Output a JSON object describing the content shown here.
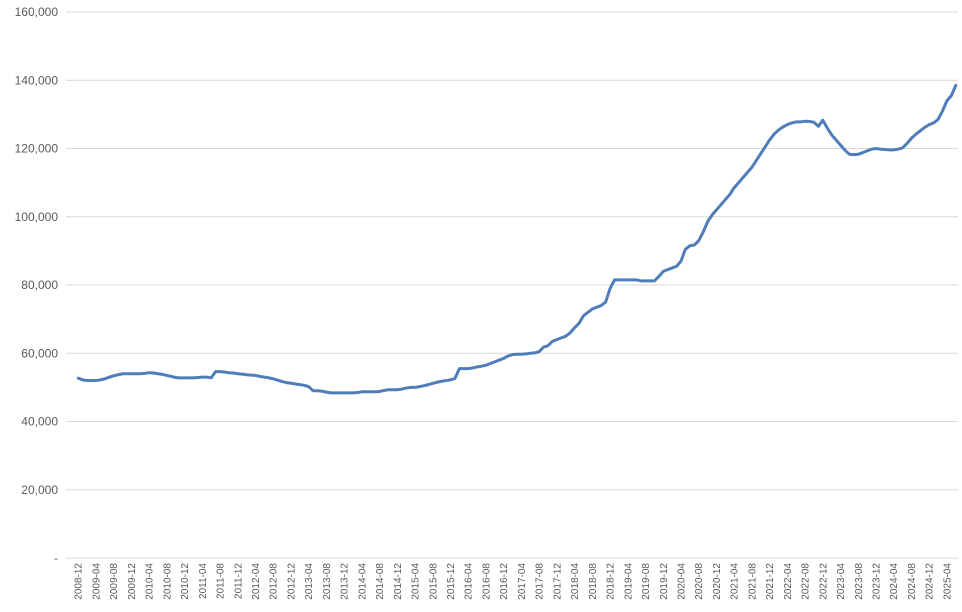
{
  "chart_data": {
    "type": "line",
    "categories": [
      "2008-12",
      null,
      null,
      null,
      "2009-04",
      null,
      null,
      null,
      "2009-08",
      null,
      null,
      null,
      "2009-12",
      null,
      null,
      null,
      "2010-04",
      null,
      null,
      null,
      "2010-08",
      null,
      null,
      null,
      "2010-12",
      null,
      null,
      null,
      "2011-04",
      null,
      null,
      null,
      "2011-08",
      null,
      null,
      null,
      "2011-12",
      null,
      null,
      null,
      "2012-04",
      null,
      null,
      null,
      "2012-08",
      null,
      null,
      null,
      "2012-12",
      null,
      null,
      null,
      "2013-04",
      null,
      null,
      null,
      "2013-08",
      null,
      null,
      null,
      "2013-12",
      null,
      null,
      null,
      "2014-04",
      null,
      null,
      null,
      "2014-08",
      null,
      null,
      null,
      "2014-12",
      null,
      null,
      null,
      "2015-04",
      null,
      null,
      null,
      "2015-08",
      null,
      null,
      null,
      "2015-12",
      null,
      null,
      null,
      "2016-04",
      null,
      null,
      null,
      "2016-08",
      null,
      null,
      null,
      "2016-12",
      null,
      null,
      null,
      "2017-04",
      null,
      null,
      null,
      "2017-08",
      null,
      null,
      null,
      "2017-12",
      null,
      null,
      null,
      "2018-04",
      null,
      null,
      null,
      "2018-08",
      null,
      null,
      null,
      "2018-12",
      null,
      null,
      null,
      "2019-04",
      null,
      null,
      null,
      "2019-08",
      null,
      null,
      null,
      "2019-12",
      null,
      null,
      null,
      "2020-04",
      null,
      null,
      null,
      "2020-08",
      null,
      null,
      null,
      "2020-12",
      null,
      null,
      null,
      "2021-04",
      null,
      null,
      null,
      "2021-08",
      null,
      null,
      null,
      "2021-12",
      null,
      null,
      null,
      "2022-04",
      null,
      null,
      null,
      "2022-08",
      null,
      null,
      null,
      "2022-12",
      null,
      null,
      null,
      "2023-04",
      null,
      null,
      null,
      "2023-08",
      null,
      null,
      null,
      "2023-12",
      null,
      null,
      null,
      "2024-04",
      null,
      null,
      null,
      "2024-08",
      null,
      null,
      null,
      "2024-12",
      null,
      null,
      null,
      "2025-04",
      null,
      null
    ],
    "series": [
      {
        "color": "#4f7dba",
        "values": [
          52700,
          52200,
          52000,
          52000,
          52000,
          52200,
          52500,
          53000,
          53400,
          53700,
          54000,
          54000,
          54000,
          54000,
          54000,
          54100,
          54300,
          54200,
          54000,
          53800,
          53500,
          53200,
          52900,
          52800,
          52800,
          52800,
          52800,
          52900,
          53000,
          53000,
          52800,
          54600,
          54600,
          54500,
          54300,
          54200,
          54000,
          53900,
          53700,
          53600,
          53500,
          53200,
          53000,
          52800,
          52500,
          52100,
          51700,
          51400,
          51200,
          51000,
          50800,
          50600,
          50200,
          49000,
          49000,
          48900,
          48600,
          48400,
          48400,
          48400,
          48400,
          48400,
          48400,
          48500,
          48700,
          48700,
          48700,
          48700,
          48800,
          49100,
          49300,
          49300,
          49300,
          49500,
          49800,
          50000,
          50000,
          50200,
          50500,
          50800,
          51200,
          51500,
          51800,
          52000,
          52200,
          52600,
          55500,
          55500,
          55500,
          55700,
          56000,
          56200,
          56500,
          57000,
          57500,
          58000,
          58500,
          59200,
          59600,
          59700,
          59700,
          59800,
          60000,
          60100,
          60500,
          61800,
          62200,
          63500,
          64000,
          64500,
          65000,
          66000,
          67500,
          68800,
          71000,
          72000,
          73000,
          73500,
          74000,
          75000,
          79000,
          81500,
          81500,
          81500,
          81500,
          81500,
          81500,
          81200,
          81200,
          81200,
          81200,
          82500,
          84000,
          84500,
          85000,
          85500,
          87000,
          90500,
          91500,
          91700,
          93000,
          95500,
          98500,
          100500,
          102000,
          103500,
          105000,
          106500,
          108500,
          110000,
          111500,
          113000,
          114500,
          116500,
          118500,
          120500,
          122500,
          124200,
          125400,
          126300,
          127000,
          127500,
          127800,
          127800,
          128000,
          127900,
          127700,
          126500,
          128300,
          126000,
          124000,
          122500,
          121000,
          119500,
          118300,
          118200,
          118300,
          118800,
          119300,
          119800,
          120000,
          119800,
          119700,
          119600,
          119600,
          119800,
          120200,
          121500,
          123000,
          124200,
          125200,
          126200,
          127000,
          127500,
          128500,
          131000,
          134000,
          135500,
          138500
        ]
      }
    ],
    "ylim": [
      0,
      160000
    ],
    "yticks": [
      {
        "value": 0,
        "label": "-"
      },
      {
        "value": 20000,
        "label": "20,000"
      },
      {
        "value": 40000,
        "label": "40,000"
      },
      {
        "value": 60000,
        "label": "60,000"
      },
      {
        "value": 80000,
        "label": "80,000"
      },
      {
        "value": 100000,
        "label": "100,000"
      },
      {
        "value": 120000,
        "label": "120,000"
      },
      {
        "value": 140000,
        "label": "140,000"
      },
      {
        "value": 160000,
        "label": "160,000"
      }
    ],
    "grid": true
  }
}
